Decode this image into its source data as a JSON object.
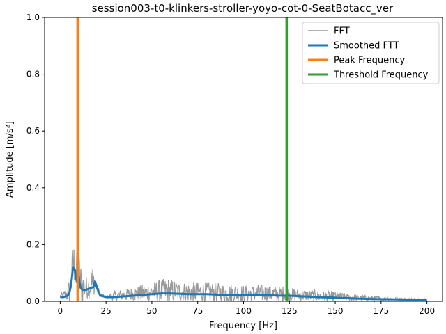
{
  "chart_data": {
    "type": "line",
    "title": "session003-t0-klinkers-stroller-yoyo-cot-0-SeatBotacc_ver",
    "xlabel": "Frequency [Hz]",
    "ylabel": "Amplitude [m/s²]",
    "xlim": [
      -8.5,
      208.5
    ],
    "ylim": [
      0,
      1.0
    ],
    "xticks": [
      0,
      25,
      50,
      75,
      100,
      125,
      150,
      175,
      200
    ],
    "yticks": [
      0.0,
      0.2,
      0.4,
      0.6,
      0.8,
      1.0
    ],
    "xtick_labels": [
      "0",
      "25",
      "50",
      "75",
      "100",
      "125",
      "150",
      "175",
      "200"
    ],
    "ytick_labels": [
      "0.0",
      "0.2",
      "0.4",
      "0.6",
      "0.8",
      "1.0"
    ],
    "grid": false,
    "legend_placement": "top-right",
    "series": [
      {
        "name": "FFT",
        "color": "#999999",
        "envelope_x": [
          0,
          2,
          4,
          6,
          7,
          8,
          9,
          10,
          11,
          12,
          14,
          16,
          17,
          18,
          19,
          20,
          21,
          22,
          25,
          30,
          40,
          50,
          55,
          60,
          65,
          70,
          80,
          90,
          100,
          110,
          120,
          125,
          130,
          140,
          150,
          160,
          170,
          180,
          190,
          200
        ],
        "envelope_y": [
          0.03,
          0.04,
          0.06,
          0.12,
          0.23,
          0.2,
          0.18,
          0.2,
          0.15,
          0.12,
          0.09,
          0.1,
          0.13,
          0.14,
          0.1,
          0.06,
          0.05,
          0.03,
          0.02,
          0.04,
          0.05,
          0.07,
          0.08,
          0.085,
          0.07,
          0.07,
          0.07,
          0.065,
          0.06,
          0.06,
          0.055,
          0.05,
          0.045,
          0.04,
          0.035,
          0.025,
          0.02,
          0.015,
          0.012,
          0.01
        ]
      },
      {
        "name": "Smoothed FTT",
        "color": "#1f77b4",
        "x": [
          0,
          2,
          4,
          5,
          6,
          7,
          8,
          9,
          10,
          11,
          12,
          14,
          16,
          18,
          19,
          20,
          21,
          22,
          25,
          30,
          40,
          50,
          55,
          60,
          70,
          80,
          90,
          100,
          110,
          120,
          125,
          130,
          140,
          150,
          160,
          170,
          180,
          190,
          200
        ],
        "y": [
          0.015,
          0.015,
          0.02,
          0.03,
          0.06,
          0.12,
          0.11,
          0.07,
          0.09,
          0.05,
          0.04,
          0.04,
          0.045,
          0.05,
          0.07,
          0.05,
          0.03,
          0.02,
          0.015,
          0.015,
          0.02,
          0.025,
          0.028,
          0.028,
          0.025,
          0.025,
          0.022,
          0.022,
          0.022,
          0.02,
          0.02,
          0.018,
          0.015,
          0.013,
          0.01,
          0.008,
          0.007,
          0.006,
          0.005
        ]
      },
      {
        "name": "Peak Frequency",
        "color": "#ff7f0e",
        "vline_x": 9.5
      },
      {
        "name": "Threshold Frequency",
        "color": "#2ca02c",
        "vline_x": 123.5
      }
    ]
  }
}
